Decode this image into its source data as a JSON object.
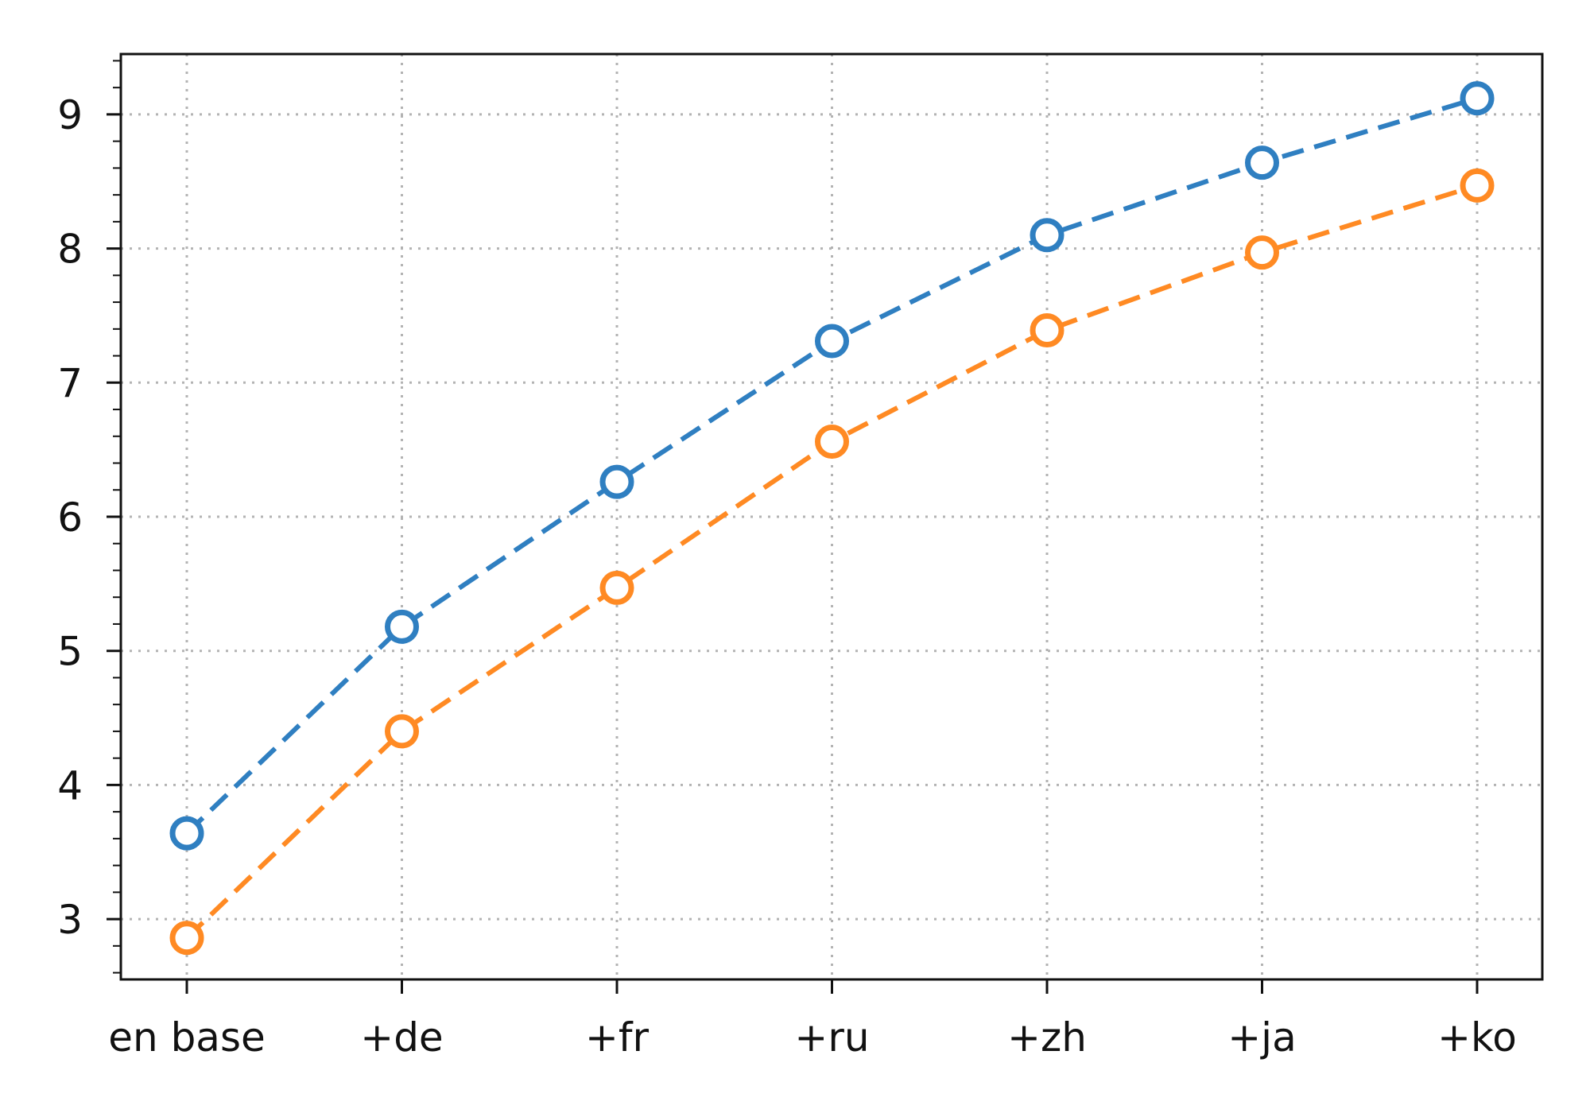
{
  "chart_data": {
    "type": "line",
    "title": "",
    "xlabel": "",
    "ylabel": "",
    "categories": [
      "en base",
      "+de",
      "+fr",
      "+ru",
      "+zh",
      "+ja",
      "+ko"
    ],
    "ylim": [
      2.55,
      9.45
    ],
    "yticks": [
      3,
      4,
      5,
      6,
      7,
      8,
      9
    ],
    "yminor_step": 0.2,
    "grid": true,
    "legend": "none",
    "series": [
      {
        "color": "#2f7fc1",
        "marker": "open-circle",
        "linestyle": "dashed",
        "values": [
          3.64,
          5.18,
          6.26,
          7.31,
          8.1,
          8.64,
          9.12
        ]
      },
      {
        "color": "#ff8a23",
        "marker": "open-circle",
        "linestyle": "dashed",
        "values": [
          2.86,
          4.4,
          5.47,
          6.56,
          7.39,
          7.97,
          8.47
        ]
      }
    ]
  }
}
